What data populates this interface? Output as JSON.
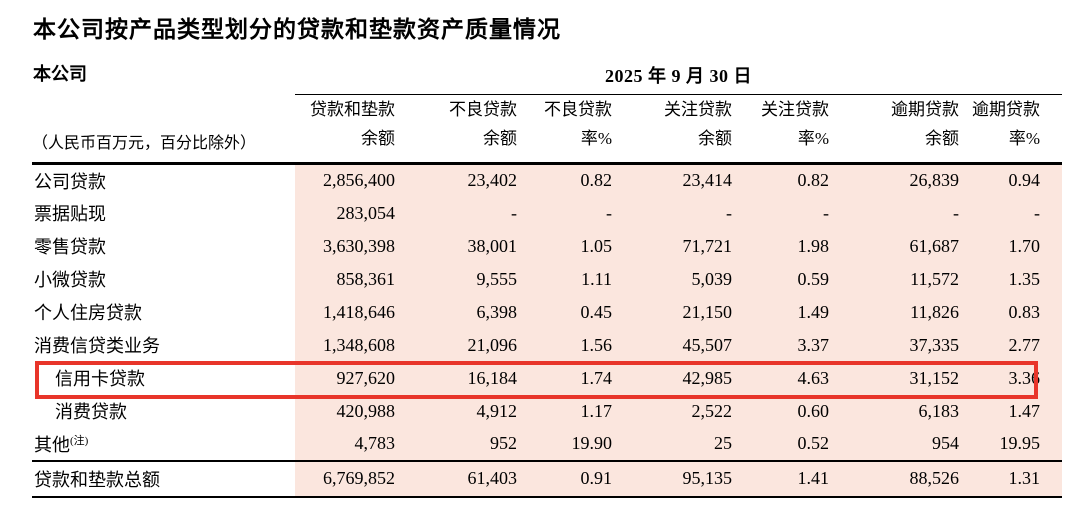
{
  "page_title": "本公司按产品类型划分的贷款和垫款资产质量情况",
  "table": {
    "entity_label": "本公司",
    "date_header": "2025 年 9 月 30 日",
    "unit_note": "（人民币百万元，百分比除外）",
    "columns": [
      {
        "line1": "贷款和垫款",
        "line2": "余额"
      },
      {
        "line1": "不良贷款",
        "line2": "余额"
      },
      {
        "line1": "不良贷款",
        "line2": "率%"
      },
      {
        "line1": "关注贷款",
        "line2": "余额"
      },
      {
        "line1": "关注贷款",
        "line2": "率%"
      },
      {
        "line1": "逾期贷款",
        "line2": "余额"
      },
      {
        "line1": "逾期贷款",
        "line2": "率%"
      }
    ],
    "rows": [
      {
        "label": "公司贷款",
        "bold": true,
        "indent": false,
        "highlighted": false,
        "values": [
          "2,856,400",
          "23,402",
          "0.82",
          "23,414",
          "0.82",
          "26,839",
          "0.94"
        ]
      },
      {
        "label": "票据贴现",
        "bold": true,
        "indent": false,
        "highlighted": false,
        "values": [
          "283,054",
          "-",
          "-",
          "-",
          "-",
          "-",
          "-"
        ]
      },
      {
        "label": "零售贷款",
        "bold": true,
        "indent": false,
        "highlighted": false,
        "values": [
          "3,630,398",
          "38,001",
          "1.05",
          "71,721",
          "1.98",
          "61,687",
          "1.70"
        ]
      },
      {
        "label": "小微贷款",
        "bold": false,
        "indent": false,
        "highlighted": false,
        "values": [
          "858,361",
          "9,555",
          "1.11",
          "5,039",
          "0.59",
          "11,572",
          "1.35"
        ]
      },
      {
        "label": "个人住房贷款",
        "bold": false,
        "indent": false,
        "highlighted": false,
        "values": [
          "1,418,646",
          "6,398",
          "0.45",
          "21,150",
          "1.49",
          "11,826",
          "0.83"
        ]
      },
      {
        "label": "消费信贷类业务",
        "bold": false,
        "indent": false,
        "highlighted": false,
        "values": [
          "1,348,608",
          "21,096",
          "1.56",
          "45,507",
          "3.37",
          "37,335",
          "2.77"
        ]
      },
      {
        "label": "信用卡贷款",
        "bold": false,
        "indent": true,
        "highlighted": true,
        "values": [
          "927,620",
          "16,184",
          "1.74",
          "42,985",
          "4.63",
          "31,152",
          "3.36"
        ]
      },
      {
        "label": "消费贷款",
        "bold": false,
        "indent": true,
        "highlighted": false,
        "values": [
          "420,988",
          "4,912",
          "1.17",
          "2,522",
          "0.60",
          "6,183",
          "1.47"
        ]
      },
      {
        "label": "其他",
        "bold": false,
        "indent": false,
        "highlighted": false,
        "superscript": "(注)",
        "values": [
          "4,783",
          "952",
          "19.90",
          "25",
          "0.52",
          "954",
          "19.95"
        ]
      }
    ],
    "total_row": {
      "label": "贷款和垫款总额",
      "values": [
        "6,769,852",
        "61,403",
        "0.91",
        "95,135",
        "1.41",
        "88,526",
        "1.31"
      ]
    }
  },
  "colors": {
    "data_area_bg": "#fbe6de",
    "highlight_border": "#e8352a",
    "rule_color": "#000000"
  }
}
